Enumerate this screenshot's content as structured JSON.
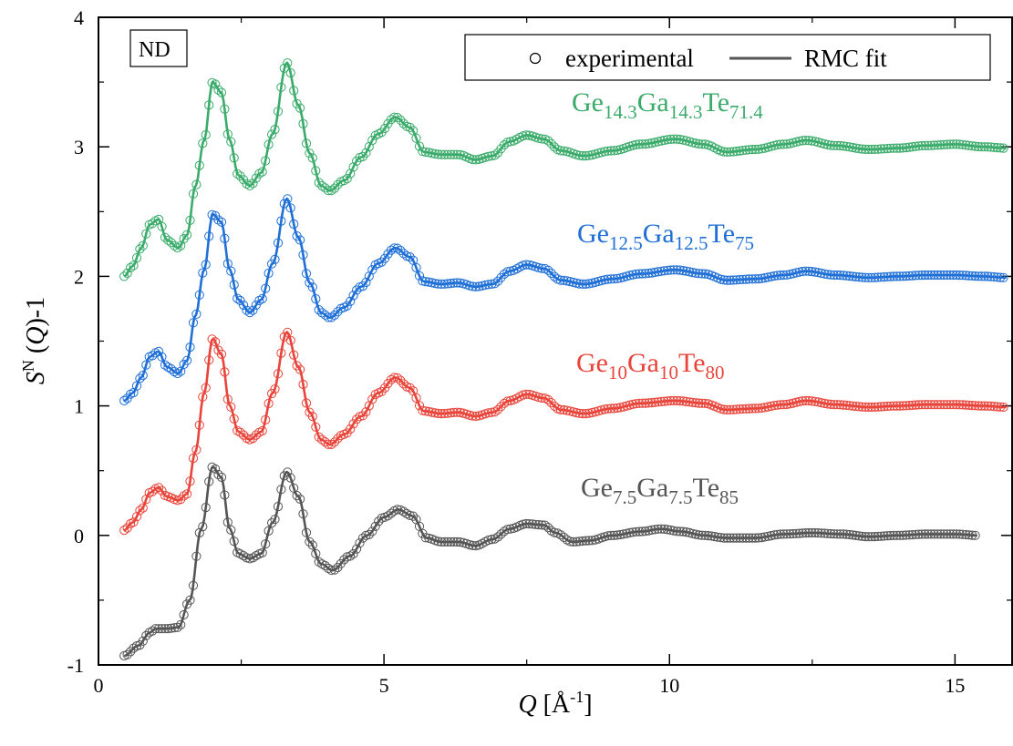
{
  "chart_data": {
    "type": "line",
    "xlabel": {
      "italic": "Q",
      "normal": " [Å",
      "sup": "-1",
      "tail": "]"
    },
    "ylabel": {
      "italic": "S",
      "sup": "N",
      "normal": " (",
      "italic2": "Q",
      "tail": ")-1"
    },
    "xlim": [
      0,
      16
    ],
    "ylim": [
      -1,
      4
    ],
    "xticks": [
      0,
      5,
      10,
      15
    ],
    "xtick_labels": [
      "0",
      "5",
      "10",
      "15"
    ],
    "yticks": [
      -1,
      0,
      1,
      2,
      3,
      4
    ],
    "ytick_labels": [
      "-1",
      "0",
      "1",
      "2",
      "3",
      "4"
    ],
    "grid": false,
    "legend": {
      "position": "top-right",
      "marker_label": "experimental",
      "line_label": "RMC fit"
    },
    "annotation": "ND",
    "series": [
      {
        "name": "Ge7.5Ga7.5Te85",
        "label_parts": [
          [
            "Ge",
            ""
          ],
          [
            "7.5",
            "sub"
          ],
          [
            "Ga",
            ""
          ],
          [
            "7.5",
            "sub"
          ],
          [
            "Te",
            ""
          ],
          [
            "85",
            "sub"
          ]
        ],
        "color": "#555555",
        "offset": 0,
        "x": [
          0.45,
          0.7,
          0.9,
          1.0,
          1.2,
          1.4,
          1.6,
          1.8,
          2.0,
          2.15,
          2.3,
          2.45,
          2.65,
          2.85,
          3.05,
          3.3,
          3.5,
          3.7,
          3.9,
          4.1,
          4.4,
          4.7,
          5.0,
          5.25,
          5.5,
          5.75,
          6.0,
          6.3,
          6.6,
          6.9,
          7.2,
          7.5,
          7.8,
          8.0,
          8.3,
          8.6,
          9.0,
          9.5,
          9.85,
          10.2,
          10.6,
          11.0,
          11.5,
          12.0,
          12.5,
          13.0,
          13.5,
          14.0,
          14.5,
          15.0,
          15.4
        ],
        "y": [
          -0.93,
          -0.85,
          -0.75,
          -0.72,
          -0.72,
          -0.71,
          -0.5,
          0.05,
          0.53,
          0.45,
          0.05,
          -0.14,
          -0.18,
          -0.14,
          0.1,
          0.49,
          0.3,
          -0.05,
          -0.22,
          -0.27,
          -0.16,
          0.0,
          0.14,
          0.2,
          0.15,
          -0.02,
          -0.05,
          -0.05,
          -0.08,
          -0.03,
          0.05,
          0.09,
          0.08,
          0.02,
          -0.05,
          -0.04,
          0.0,
          0.03,
          0.05,
          0.03,
          0.0,
          -0.02,
          -0.02,
          0.01,
          0.02,
          0.01,
          -0.01,
          0.0,
          0.01,
          0.01,
          0.0
        ]
      },
      {
        "name": "Ge10Ga10Te80",
        "label_parts": [
          [
            "Ge",
            ""
          ],
          [
            "10",
            "sub"
          ],
          [
            "Ga",
            ""
          ],
          [
            "10",
            "sub"
          ],
          [
            "Te",
            ""
          ],
          [
            "80",
            "sub"
          ]
        ],
        "color": "#e8443a",
        "offset": 1,
        "x": [
          0.45,
          0.6,
          0.75,
          0.9,
          1.05,
          1.2,
          1.4,
          1.55,
          1.7,
          1.85,
          2.0,
          2.15,
          2.3,
          2.45,
          2.65,
          2.85,
          3.05,
          3.3,
          3.5,
          3.7,
          3.9,
          4.05,
          4.3,
          4.6,
          4.9,
          5.2,
          5.45,
          5.7,
          6.0,
          6.3,
          6.6,
          6.9,
          7.2,
          7.5,
          7.8,
          8.1,
          8.5,
          9.0,
          9.5,
          10.1,
          10.6,
          11.0,
          11.5,
          12.0,
          12.4,
          12.9,
          13.5,
          14.0,
          14.5,
          15.0,
          15.5,
          15.9
        ],
        "y": [
          -0.96,
          -0.9,
          -0.8,
          -0.67,
          -0.63,
          -0.7,
          -0.73,
          -0.68,
          -0.35,
          0.1,
          0.52,
          0.4,
          -0.0,
          -0.2,
          -0.26,
          -0.2,
          0.1,
          0.57,
          0.3,
          -0.05,
          -0.26,
          -0.3,
          -0.22,
          -0.08,
          0.1,
          0.22,
          0.14,
          -0.04,
          -0.06,
          -0.05,
          -0.08,
          -0.05,
          0.04,
          0.09,
          0.06,
          -0.03,
          -0.06,
          -0.02,
          0.02,
          0.04,
          0.02,
          -0.03,
          -0.02,
          0.01,
          0.04,
          0.01,
          -0.01,
          0.0,
          0.01,
          0.01,
          0.0,
          -0.01
        ]
      },
      {
        "name": "Ge12.5Ga12.5Te75",
        "label_parts": [
          [
            "Ge",
            ""
          ],
          [
            "12.5",
            "sub"
          ],
          [
            "Ga",
            ""
          ],
          [
            "12.5",
            "sub"
          ],
          [
            "Te",
            ""
          ],
          [
            "75",
            "sub"
          ]
        ],
        "color": "#1f6fd6",
        "offset": 2,
        "x": [
          0.45,
          0.6,
          0.75,
          0.9,
          1.05,
          1.2,
          1.4,
          1.55,
          1.7,
          1.85,
          2.0,
          2.15,
          2.3,
          2.45,
          2.65,
          2.85,
          3.05,
          3.3,
          3.5,
          3.7,
          3.9,
          4.05,
          4.3,
          4.6,
          4.9,
          5.2,
          5.45,
          5.7,
          6.0,
          6.3,
          6.6,
          6.9,
          7.2,
          7.5,
          7.8,
          8.1,
          8.5,
          9.0,
          9.5,
          10.1,
          10.6,
          11.0,
          11.5,
          12.0,
          12.4,
          12.9,
          13.5,
          14.0,
          14.5,
          15.0,
          15.5,
          15.9
        ],
        "y": [
          -0.96,
          -0.9,
          -0.78,
          -0.62,
          -0.58,
          -0.7,
          -0.75,
          -0.65,
          -0.3,
          0.05,
          0.48,
          0.42,
          0.05,
          -0.18,
          -0.28,
          -0.18,
          0.1,
          0.6,
          0.3,
          -0.05,
          -0.28,
          -0.32,
          -0.24,
          -0.08,
          0.1,
          0.22,
          0.15,
          -0.04,
          -0.06,
          -0.05,
          -0.08,
          -0.06,
          0.04,
          0.09,
          0.06,
          -0.03,
          -0.06,
          -0.02,
          0.02,
          0.05,
          0.02,
          -0.03,
          -0.02,
          0.01,
          0.04,
          0.01,
          -0.01,
          0.0,
          0.01,
          0.01,
          0.0,
          -0.01
        ]
      },
      {
        "name": "Ge14.3Ga14.3Te71.4",
        "label_parts": [
          [
            "Ge",
            ""
          ],
          [
            "14.3",
            "sub"
          ],
          [
            "Ga",
            ""
          ],
          [
            "14.3",
            "sub"
          ],
          [
            "Te",
            ""
          ],
          [
            "71.4",
            "sub"
          ]
        ],
        "color": "#3aab6a",
        "offset": 3,
        "x": [
          0.45,
          0.6,
          0.75,
          0.9,
          1.05,
          1.2,
          1.4,
          1.55,
          1.7,
          1.85,
          2.0,
          2.15,
          2.3,
          2.45,
          2.65,
          2.85,
          3.05,
          3.3,
          3.5,
          3.7,
          3.9,
          4.05,
          4.3,
          4.6,
          4.9,
          5.2,
          5.45,
          5.7,
          6.0,
          6.3,
          6.6,
          6.9,
          7.2,
          7.5,
          7.8,
          8.1,
          8.5,
          9.0,
          9.5,
          10.1,
          10.6,
          11.0,
          11.5,
          12.0,
          12.4,
          12.9,
          13.5,
          14.0,
          14.5,
          15.0,
          15.5,
          15.9
        ],
        "y": [
          -1.0,
          -0.92,
          -0.78,
          -0.6,
          -0.56,
          -0.72,
          -0.78,
          -0.68,
          -0.3,
          0.05,
          0.5,
          0.42,
          0.05,
          -0.22,
          -0.3,
          -0.2,
          0.1,
          0.65,
          0.32,
          -0.05,
          -0.3,
          -0.34,
          -0.26,
          -0.08,
          0.1,
          0.23,
          0.15,
          -0.04,
          -0.06,
          -0.06,
          -0.1,
          -0.07,
          0.04,
          0.09,
          0.06,
          -0.03,
          -0.07,
          -0.03,
          0.02,
          0.06,
          0.02,
          -0.04,
          -0.02,
          0.02,
          0.05,
          0.01,
          -0.02,
          -0.01,
          0.01,
          0.02,
          0.0,
          -0.01
        ]
      }
    ]
  }
}
